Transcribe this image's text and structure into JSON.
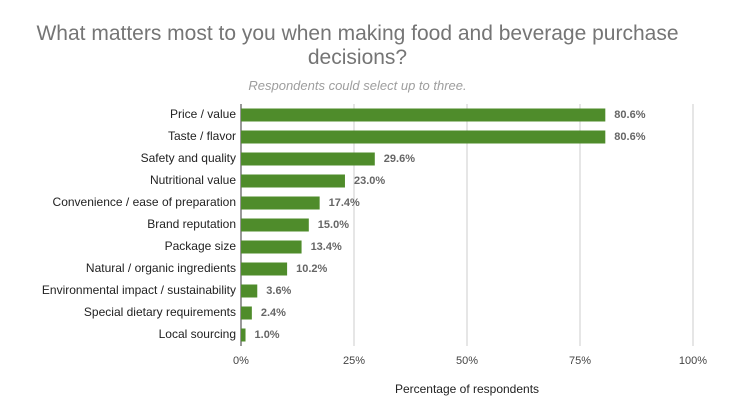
{
  "chart_data": {
    "type": "bar",
    "title": "What matters most to you when making food and beverage purchase decisions?",
    "subtitle": "Respondents could select up to three.",
    "x_label": "Percentage of respondents",
    "orientation": "horizontal",
    "categories": [
      "Price / value",
      "Taste / flavor",
      "Safety and quality",
      "Nutritional value",
      "Convenience / ease of preparation",
      "Brand reputation",
      "Package size",
      "Natural / organic ingredients",
      "Environmental impact / sustainability",
      "Special dietary requirements",
      "Local sourcing"
    ],
    "values": [
      80.6,
      80.6,
      29.6,
      23.0,
      17.4,
      15.0,
      13.4,
      10.2,
      3.6,
      2.4,
      1.0
    ],
    "value_labels": [
      "80.6%",
      "80.6%",
      "29.6%",
      "23.0%",
      "17.4%",
      "15.0%",
      "13.4%",
      "10.2%",
      "3.6%",
      "2.4%",
      "1.0%"
    ],
    "color": "#4f8c2b",
    "xlim": [
      0,
      100
    ],
    "xticks": [
      {
        "value": 0,
        "label": "0%"
      },
      {
        "value": 25,
        "label": "25%"
      },
      {
        "value": 50,
        "label": "50%"
      },
      {
        "value": 75,
        "label": "75%"
      },
      {
        "value": 100,
        "label": "100%"
      }
    ],
    "grid": true
  }
}
